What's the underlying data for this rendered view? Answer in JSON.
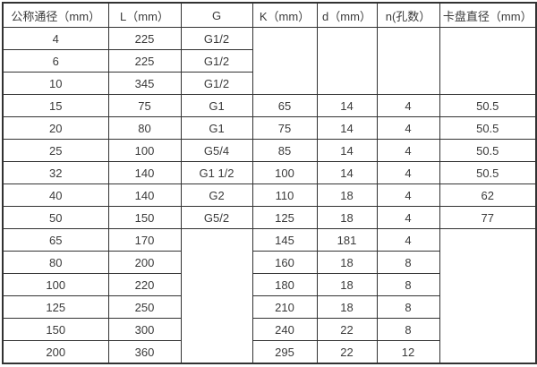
{
  "chart_data": {
    "type": "table",
    "headers": [
      "公称通径（mm）",
      "L（mm）",
      "G",
      "K（mm）",
      "d（mm）",
      "n(孔数）",
      "卡盘直径（mm）"
    ],
    "rows": [
      [
        "4",
        "225",
        "G1/2"
      ],
      [
        "6",
        "225",
        "G1/2"
      ],
      [
        "10",
        "345",
        "G1/2"
      ],
      [
        "15",
        "75",
        "G1",
        "65",
        "14",
        "4",
        "50.5"
      ],
      [
        "20",
        "80",
        "G1",
        "75",
        "14",
        "4",
        "50.5"
      ],
      [
        "25",
        "100",
        "G5/4",
        "85",
        "14",
        "4",
        "50.5"
      ],
      [
        "32",
        "140",
        "G1 1/2",
        "100",
        "14",
        "4",
        "50.5"
      ],
      [
        "40",
        "140",
        "G2",
        "110",
        "18",
        "4",
        "62"
      ],
      [
        "50",
        "150",
        "G5/2",
        "125",
        "18",
        "4",
        "77"
      ],
      [
        "65",
        "170",
        "145",
        "181",
        "4"
      ],
      [
        "80",
        "200",
        "160",
        "18",
        "8"
      ],
      [
        "100",
        "220",
        "180",
        "18",
        "8"
      ],
      [
        "125",
        "250",
        "210",
        "18",
        "8"
      ],
      [
        "150",
        "300",
        "240",
        "22",
        "8"
      ],
      [
        "200",
        "360",
        "295",
        "22",
        "12"
      ]
    ],
    "merged_blank_regions": [
      "K/d/n/卡盘直径 blank for rows 4,6,10",
      "G blank for rows 65-200",
      "卡盘直径 blank for rows 65-200"
    ],
    "title": ""
  },
  "colors": {
    "border": "#323232",
    "text": "#3a3a3a",
    "background": "#ffffff"
  }
}
